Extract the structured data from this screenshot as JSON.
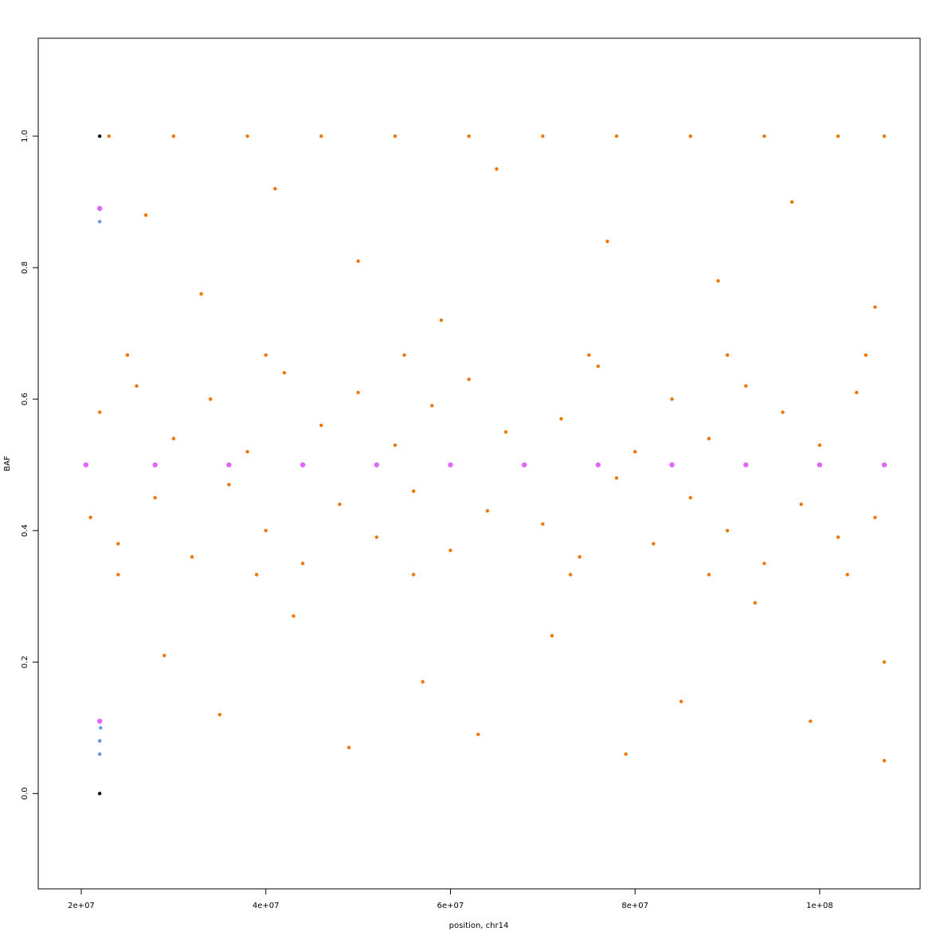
{
  "chart_data": {
    "type": "scatter",
    "xlabel": "position, chr14",
    "ylabel": "BAF",
    "xlim": [
      15340000,
      110880000
    ],
    "ylim": [
      -0.145,
      1.149
    ],
    "xticks": [
      {
        "value": 20000000,
        "label": "2e+07"
      },
      {
        "value": 40000000,
        "label": "4e+07"
      },
      {
        "value": 60000000,
        "label": "6e+07"
      },
      {
        "value": 80000000,
        "label": "8e+07"
      },
      {
        "value": 100000000,
        "label": "1e+08"
      }
    ],
    "yticks": [
      {
        "value": 0,
        "label": "0.0"
      },
      {
        "value": 0.2,
        "label": "0.2"
      },
      {
        "value": 0.4,
        "label": "0.4"
      },
      {
        "value": 0.6,
        "label": "0.6"
      },
      {
        "value": 0.8,
        "label": "0.8"
      },
      {
        "value": 1,
        "label": "1.0"
      }
    ],
    "series": [
      {
        "color": "#ee7600",
        "x": [
          21000000.0,
          24000000.0,
          28000000.0,
          32000000.0,
          36000000.0,
          40000000.0,
          44000000.0,
          48000000.0,
          52000000.0,
          56000000.0,
          60000000.0,
          64000000.0,
          70000000.0,
          74000000.0,
          78000000.0,
          82000000.0,
          86000000.0,
          90000000.0,
          94000000.0,
          98000000.0,
          102000000.0,
          106000000.0,
          22000000.0,
          26000000.0,
          30000000.0,
          34000000.0,
          38000000.0,
          42000000.0,
          46000000.0,
          50000000.0,
          54000000.0,
          58000000.0,
          62000000.0,
          66000000.0,
          72000000.0,
          76000000.0,
          80000000.0,
          84000000.0,
          88000000.0,
          92000000.0,
          96000000.0,
          100000000.0,
          104000000.0,
          23000000.0,
          30000000.0,
          38000000.0,
          46000000.0,
          54000000.0,
          62000000.0,
          70000000.0,
          78000000.0,
          86000000.0,
          94000000.0,
          102000000.0,
          107000000.0,
          25000000.0,
          40000000.0,
          55000000.0,
          75000000.0,
          90000000.0,
          105000000.0,
          24000000.0,
          39000000.0,
          56000000.0,
          73000000.0,
          88000000.0,
          103000000.0,
          27000000.0,
          33000000.0,
          41000000.0,
          50000000.0,
          59000000.0,
          65000000.0,
          77000000.0,
          89000000.0,
          97000000.0,
          106000000.0,
          22000000.0,
          29000000.0,
          35000000.0,
          43000000.0,
          49000000.0,
          57000000.0,
          63000000.0,
          71000000.0,
          79000000.0,
          85000000.0,
          93000000.0,
          99000000.0,
          107000000.0,
          107000000.0
        ],
        "values": [
          0.42,
          0.38,
          0.45,
          0.36,
          0.47,
          0.4,
          0.35,
          0.44,
          0.39,
          0.46,
          0.37,
          0.43,
          0.41,
          0.36,
          0.48,
          0.38,
          0.45,
          0.4,
          0.35,
          0.44,
          0.39,
          0.42,
          0.58,
          0.62,
          0.54,
          0.6,
          0.52,
          0.64,
          0.56,
          0.61,
          0.53,
          0.59,
          0.63,
          0.55,
          0.57,
          0.65,
          0.52,
          0.6,
          0.54,
          0.62,
          0.58,
          0.53,
          0.61,
          1,
          1,
          1,
          1,
          1,
          1,
          1,
          1,
          1,
          1,
          1,
          1,
          0.667,
          0.667,
          0.667,
          0.667,
          0.667,
          0.667,
          0.333,
          0.333,
          0.333,
          0.333,
          0.333,
          0.333,
          0.88,
          0.76,
          0.92,
          0.81,
          0.72,
          0.95,
          0.84,
          0.78,
          0.9,
          0.74,
          0.08,
          0.21,
          0.12,
          0.27,
          0.07,
          0.17,
          0.09,
          0.24,
          0.06,
          0.14,
          0.29,
          0.11,
          0.05,
          0.2
        ]
      },
      {
        "color": "#e066ff",
        "x": [
          20500000.0,
          28000000.0,
          36000000.0,
          44000000.0,
          52000000.0,
          60000000.0,
          68000000.0,
          76000000.0,
          84000000.0,
          92000000.0,
          100000000.0,
          107000000.0,
          22000000.0,
          22000000.0
        ],
        "values": [
          0.5,
          0.5,
          0.5,
          0.5,
          0.5,
          0.5,
          0.5,
          0.5,
          0.5,
          0.5,
          0.5,
          0.5,
          0.89,
          0.11
        ]
      },
      {
        "color": "#6495ed",
        "x": [
          22000000.0,
          22000000.0,
          22000000.0,
          22100000.0
        ],
        "values": [
          0.87,
          0.06,
          0.08,
          0.1
        ]
      },
      {
        "color": "#000000",
        "x": [
          22000000.0,
          22000000.0
        ],
        "values": [
          1,
          0
        ]
      }
    ]
  }
}
